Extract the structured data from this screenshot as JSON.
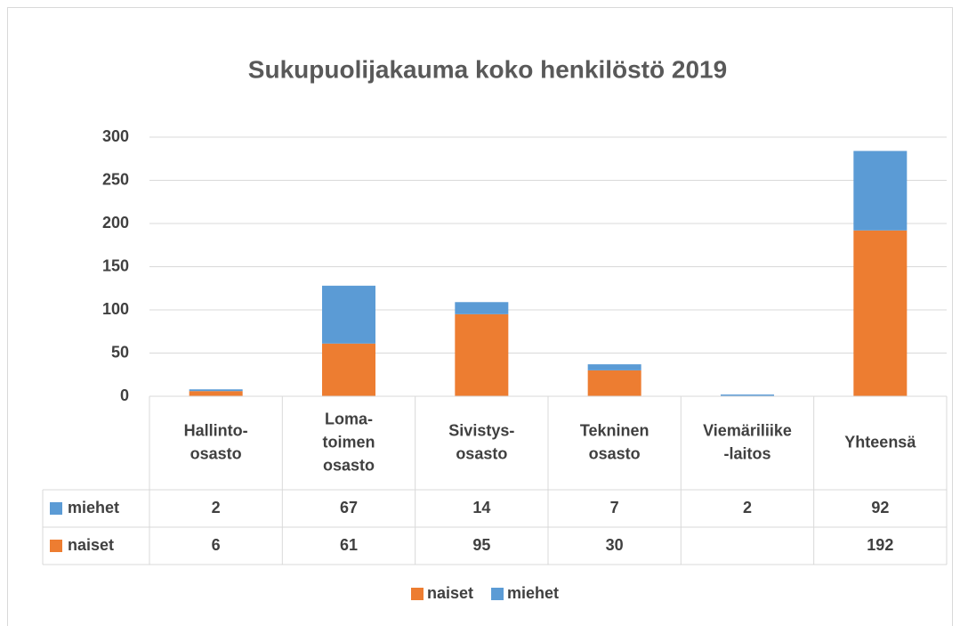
{
  "chart_data": {
    "type": "stacked_bar",
    "title": "Sukupuolijakauma koko henkilöstö 2019",
    "categories": [
      [
        "Hallinto-",
        "osasto"
      ],
      [
        "Loma-",
        "toimen",
        "osasto"
      ],
      [
        "Sivistys-",
        "osasto"
      ],
      [
        "Tekninen",
        "osasto"
      ],
      [
        "Viemäriliike",
        "-laitos"
      ],
      [
        "Yhteensä"
      ]
    ],
    "series": [
      {
        "name": "naiset",
        "color": "#ed7d31",
        "values": [
          6,
          61,
          95,
          30,
          null,
          192
        ]
      },
      {
        "name": "miehet",
        "color": "#5b9bd5",
        "values": [
          2,
          67,
          14,
          7,
          2,
          92
        ]
      }
    ],
    "ylim": [
      0,
      300
    ],
    "yticks": [
      0,
      50,
      100,
      150,
      200,
      250,
      300
    ],
    "grid": true,
    "legend": "bottom",
    "data_table": true
  }
}
